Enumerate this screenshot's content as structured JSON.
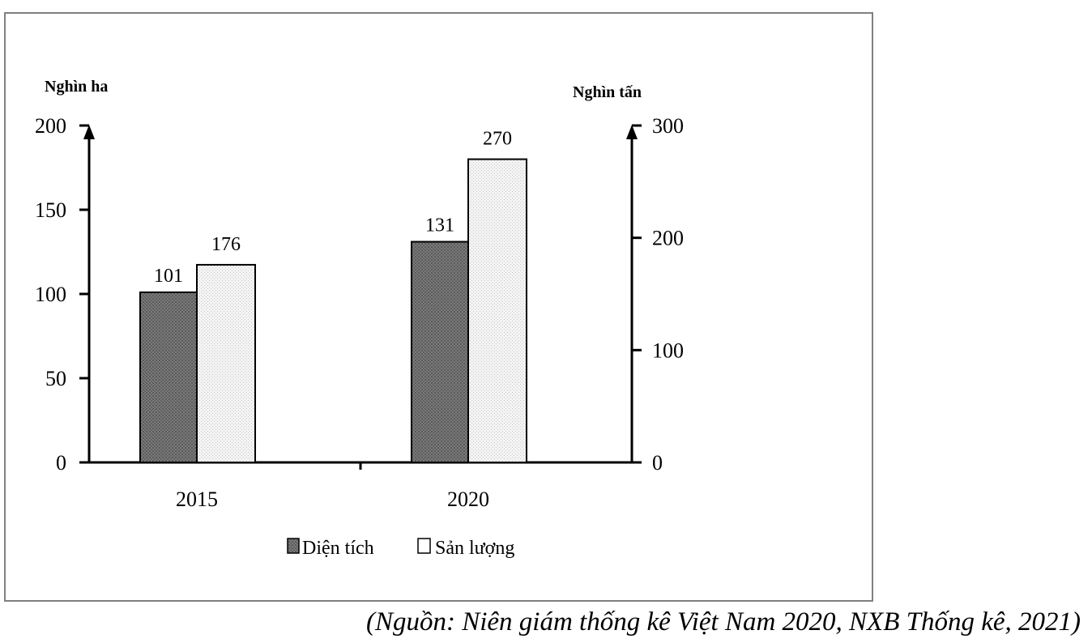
{
  "chart_data": {
    "type": "bar",
    "categories": [
      "2015",
      "2020"
    ],
    "series": [
      {
        "name": "Diện tích",
        "values": [
          101,
          131
        ],
        "axis": "left",
        "pattern": "dark-hatched"
      },
      {
        "name": "Sản lượng",
        "values": [
          176,
          270
        ],
        "axis": "right",
        "pattern": "light-dotted"
      }
    ],
    "left_axis": {
      "label": "Nghìn ha",
      "range": [
        0,
        200
      ],
      "ticks": [
        0,
        50,
        100,
        150,
        200
      ]
    },
    "right_axis": {
      "label": "Nghìn tấn",
      "range": [
        0,
        300
      ],
      "ticks": [
        0,
        100,
        200,
        300
      ]
    },
    "data_labels": [
      [
        "101",
        "131"
      ],
      [
        "176",
        "270"
      ]
    ],
    "grid": false,
    "legend_position": "bottom"
  },
  "source_note": "(Nguồn: Niên giám thống kê Việt Nam 2020, NXB Thống kê, 2021)"
}
